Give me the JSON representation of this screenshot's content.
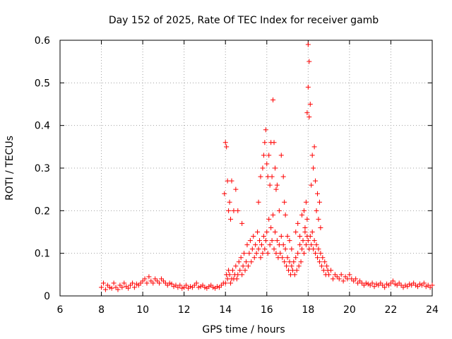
{
  "chart_data": {
    "type": "scatter",
    "title": "Day 152 of 2025, Rate Of TEC Index for receiver gamb",
    "xlabel": "GPS time / hours",
    "ylabel": "ROTI / TECUs",
    "xlim": [
      6,
      24
    ],
    "ylim": [
      0,
      0.6
    ],
    "xticks": [
      6,
      8,
      10,
      12,
      14,
      16,
      18,
      20,
      22,
      24
    ],
    "yticks": [
      0,
      0.1,
      0.2,
      0.3,
      0.4,
      0.5,
      0.6
    ],
    "grid": true,
    "marker": "plus",
    "color": "#ff0000",
    "series": [
      {
        "x": [
          8.0,
          8.1,
          8.2,
          8.3,
          8.4,
          8.5,
          8.6,
          8.7,
          8.8,
          8.9,
          9.0,
          9.1,
          9.2,
          9.3,
          9.4,
          9.5,
          9.6,
          9.7,
          9.8,
          9.9,
          10.0,
          10.1,
          10.2,
          10.3,
          10.4,
          10.5,
          10.6,
          10.7,
          10.8,
          10.9,
          11.0,
          11.1,
          11.2,
          11.3,
          11.4,
          11.5,
          11.6,
          11.7,
          11.8,
          11.9,
          12.0,
          12.1,
          12.2,
          12.3,
          12.4,
          12.5,
          12.6,
          12.7,
          12.8,
          12.9,
          13.0,
          13.1,
          13.2,
          13.3,
          13.4,
          13.5,
          13.6,
          13.7,
          13.8,
          13.9,
          14.0,
          14.05,
          14.1,
          14.15,
          14.2,
          14.25,
          14.3,
          14.35,
          14.4,
          14.45,
          14.5,
          14.55,
          14.6,
          14.65,
          14.7,
          14.75,
          14.8,
          14.85,
          14.9,
          14.95,
          15.0,
          15.05,
          15.1,
          15.15,
          15.2,
          15.25,
          15.3,
          15.35,
          15.4,
          15.45,
          15.5,
          15.55,
          15.6,
          15.65,
          15.7,
          15.75,
          15.8,
          15.85,
          15.9,
          15.95,
          16.0,
          16.05,
          16.1,
          16.15,
          16.2,
          16.25,
          16.3,
          16.35,
          16.4,
          16.45,
          16.5,
          16.55,
          16.6,
          16.65,
          16.7,
          16.75,
          16.8,
          16.85,
          16.9,
          16.95,
          17.0,
          17.05,
          17.1,
          17.15,
          17.2,
          17.25,
          17.3,
          17.35,
          17.4,
          17.45,
          17.5,
          17.55,
          17.6,
          17.65,
          17.7,
          17.75,
          17.8,
          17.85,
          17.9,
          17.95,
          18.0,
          18.05,
          18.1,
          18.15,
          18.2,
          18.25,
          18.3,
          18.35,
          18.4,
          18.45,
          18.5,
          18.55,
          18.6,
          18.65,
          18.7,
          18.75,
          18.8,
          18.85,
          18.9,
          18.95,
          19.0,
          19.1,
          19.2,
          19.3,
          19.4,
          19.5,
          19.6,
          19.7,
          19.8,
          19.9,
          20.0,
          20.1,
          20.2,
          20.3,
          20.4,
          20.5,
          20.6,
          20.7,
          20.8,
          20.9,
          21.0,
          21.1,
          21.2,
          21.3,
          21.4,
          21.5,
          21.6,
          21.7,
          21.8,
          21.9,
          22.0,
          22.1,
          22.2,
          22.3,
          22.4,
          22.5,
          22.6,
          22.7,
          22.8,
          22.9,
          23.0,
          23.1,
          23.2,
          23.3,
          23.4,
          23.5,
          23.6,
          23.7,
          23.8,
          23.9,
          24.0,
          13.95,
          14.0,
          14.05,
          14.1,
          14.15,
          14.2,
          14.25,
          14.3,
          14.4,
          14.5,
          14.6,
          14.8,
          15.6,
          15.7,
          15.8,
          15.85,
          15.9,
          15.95,
          16.0,
          16.05,
          16.1,
          16.15,
          16.2,
          16.25,
          16.3,
          16.35,
          16.4,
          16.45,
          16.5,
          16.6,
          16.7,
          16.8,
          16.85,
          16.9,
          17.0,
          17.1,
          17.2,
          17.4,
          17.5,
          17.6,
          17.7,
          17.8,
          17.85,
          17.9,
          17.95,
          18.0,
          18.05,
          17.95,
          18.0,
          18.05,
          18.1,
          18.15,
          18.2,
          18.25,
          18.3,
          18.35,
          18.4,
          18.45,
          18.5,
          18.55,
          18.6
        ],
        "y": [
          0.02,
          0.03,
          0.015,
          0.025,
          0.02,
          0.018,
          0.03,
          0.02,
          0.015,
          0.025,
          0.02,
          0.03,
          0.022,
          0.018,
          0.025,
          0.03,
          0.02,
          0.028,
          0.025,
          0.03,
          0.035,
          0.04,
          0.03,
          0.045,
          0.035,
          0.03,
          0.04,
          0.035,
          0.03,
          0.04,
          0.035,
          0.03,
          0.025,
          0.03,
          0.028,
          0.022,
          0.025,
          0.02,
          0.025,
          0.018,
          0.02,
          0.025,
          0.018,
          0.022,
          0.02,
          0.025,
          0.03,
          0.02,
          0.022,
          0.025,
          0.02,
          0.018,
          0.022,
          0.025,
          0.02,
          0.018,
          0.022,
          0.02,
          0.025,
          0.03,
          0.03,
          0.05,
          0.04,
          0.06,
          0.05,
          0.03,
          0.04,
          0.06,
          0.04,
          0.05,
          0.07,
          0.04,
          0.05,
          0.08,
          0.06,
          0.09,
          0.05,
          0.07,
          0.1,
          0.06,
          0.08,
          0.12,
          0.07,
          0.1,
          0.13,
          0.08,
          0.11,
          0.14,
          0.09,
          0.12,
          0.1,
          0.15,
          0.11,
          0.13,
          0.09,
          0.12,
          0.1,
          0.14,
          0.11,
          0.13,
          0.15,
          0.1,
          0.18,
          0.12,
          0.16,
          0.13,
          0.19,
          0.11,
          0.15,
          0.1,
          0.13,
          0.09,
          0.12,
          0.1,
          0.14,
          0.09,
          0.12,
          0.08,
          0.11,
          0.07,
          0.09,
          0.06,
          0.08,
          0.05,
          0.07,
          0.06,
          0.08,
          0.05,
          0.09,
          0.06,
          0.1,
          0.07,
          0.12,
          0.08,
          0.11,
          0.13,
          0.1,
          0.15,
          0.12,
          0.14,
          0.13,
          0.11,
          0.14,
          0.12,
          0.15,
          0.11,
          0.13,
          0.1,
          0.12,
          0.09,
          0.11,
          0.08,
          0.1,
          0.07,
          0.09,
          0.06,
          0.08,
          0.05,
          0.07,
          0.06,
          0.05,
          0.06,
          0.04,
          0.05,
          0.045,
          0.04,
          0.05,
          0.035,
          0.045,
          0.04,
          0.05,
          0.04,
          0.035,
          0.04,
          0.03,
          0.035,
          0.03,
          0.025,
          0.03,
          0.028,
          0.025,
          0.03,
          0.022,
          0.028,
          0.025,
          0.03,
          0.025,
          0.02,
          0.028,
          0.025,
          0.03,
          0.035,
          0.028,
          0.025,
          0.03,
          0.025,
          0.02,
          0.025,
          0.022,
          0.028,
          0.025,
          0.03,
          0.025,
          0.022,
          0.028,
          0.025,
          0.03,
          0.022,
          0.025,
          0.02,
          0.025,
          0.24,
          0.36,
          0.35,
          0.27,
          0.2,
          0.22,
          0.18,
          0.27,
          0.2,
          0.25,
          0.2,
          0.17,
          0.22,
          0.28,
          0.3,
          0.33,
          0.36,
          0.39,
          0.31,
          0.28,
          0.33,
          0.26,
          0.36,
          0.28,
          0.46,
          0.36,
          0.3,
          0.25,
          0.26,
          0.2,
          0.33,
          0.28,
          0.22,
          0.19,
          0.14,
          0.13,
          0.11,
          0.15,
          0.17,
          0.14,
          0.19,
          0.2,
          0.16,
          0.22,
          0.18,
          0.59,
          0.55,
          0.43,
          0.49,
          0.42,
          0.45,
          0.26,
          0.33,
          0.3,
          0.35,
          0.27,
          0.2,
          0.24,
          0.18,
          0.22,
          0.16
        ]
      }
    ]
  }
}
